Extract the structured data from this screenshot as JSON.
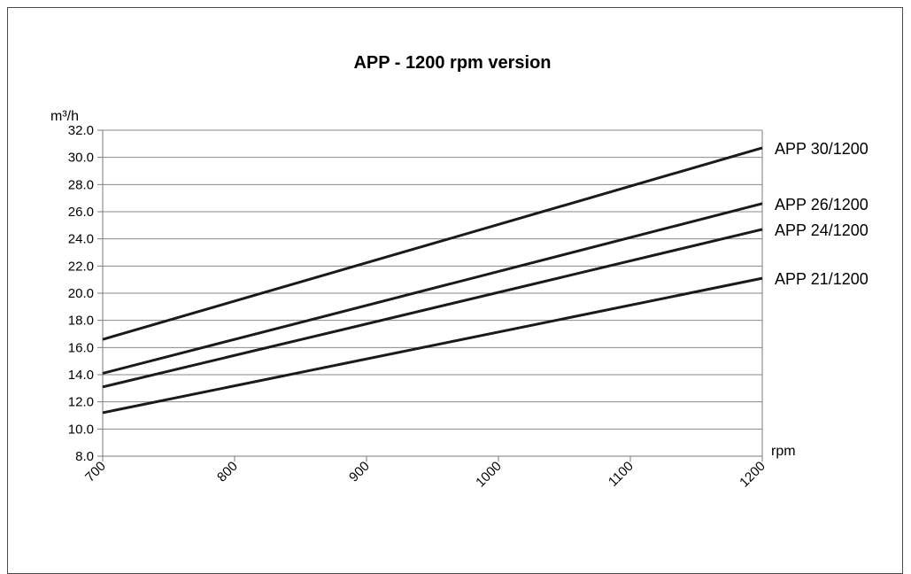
{
  "chart_data": {
    "type": "line",
    "title": "APP - 1200 rpm version",
    "ylabel": "m³/h",
    "xlabel": "rpm",
    "x": [
      700,
      1200
    ],
    "xticks": [
      "700",
      "800",
      "900",
      "1000",
      "1100",
      "1200"
    ],
    "yticks": [
      "8.0",
      "10.0",
      "12.0",
      "14.0",
      "16.0",
      "18.0",
      "20.0",
      "22.0",
      "24.0",
      "26.0",
      "28.0",
      "30.0",
      "32.0"
    ],
    "xlim": [
      700,
      1200
    ],
    "ylim": [
      8,
      32
    ],
    "grid": "horizontal",
    "series": [
      {
        "name": "APP 30/1200",
        "values": [
          16.6,
          30.7
        ]
      },
      {
        "name": "APP 26/1200",
        "values": [
          14.1,
          26.6
        ]
      },
      {
        "name": "APP 24/1200",
        "values": [
          13.1,
          24.7
        ]
      },
      {
        "name": "APP 21/1200",
        "values": [
          11.2,
          21.1
        ]
      }
    ],
    "line_color": "#1a1a1a"
  }
}
